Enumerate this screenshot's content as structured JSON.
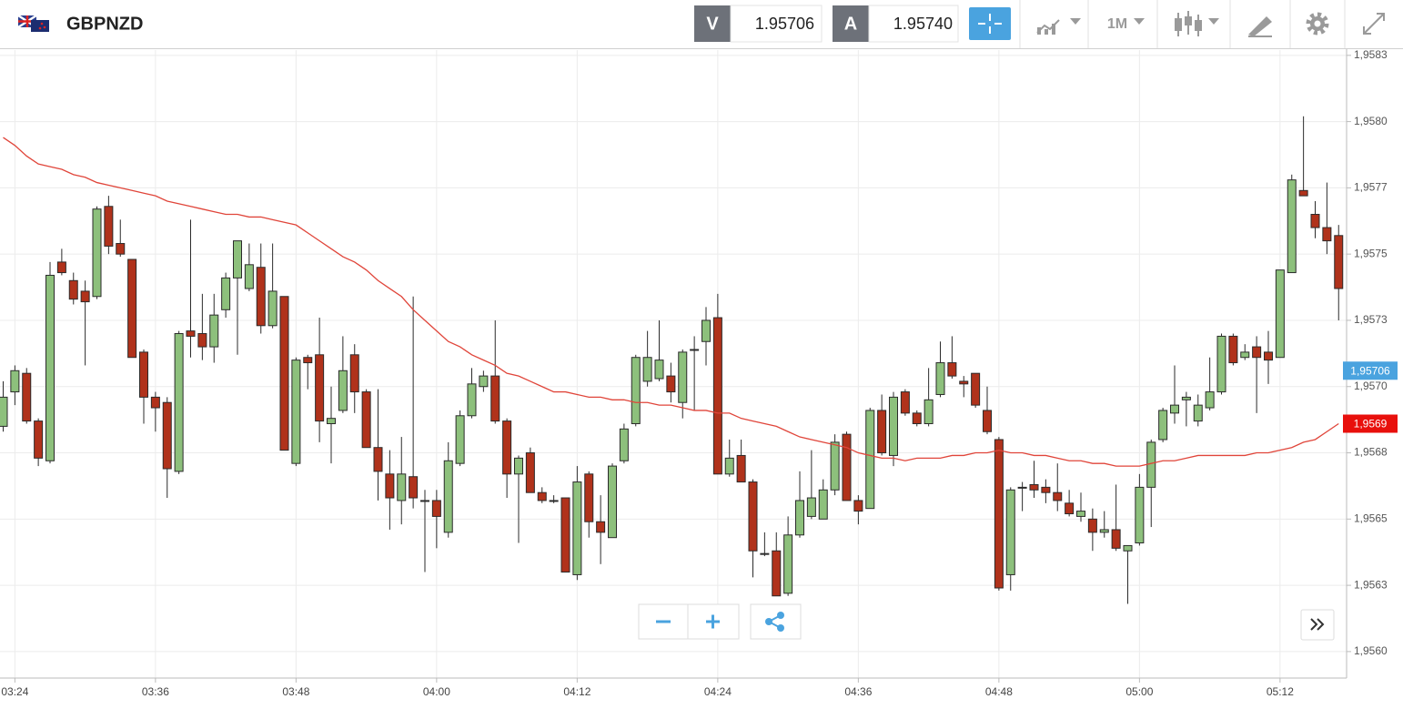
{
  "toolbar": {
    "symbol": "GBPNZD",
    "bid_label": "V",
    "bid": "1.95706",
    "ask_label": "A",
    "ask": "1.95740",
    "timeframe": "1M"
  },
  "chart_data": {
    "type": "candlestick",
    "categories": [
      null,
      "03:24",
      null,
      null,
      null,
      null,
      null,
      null,
      null,
      null,
      null,
      null,
      null,
      "03:36",
      null,
      null,
      null,
      null,
      null,
      null,
      null,
      null,
      null,
      null,
      null,
      "03:48",
      null,
      null,
      null,
      null,
      null,
      null,
      null,
      null,
      null,
      null,
      null,
      "04:00",
      null,
      null,
      null,
      null,
      null,
      null,
      null,
      null,
      null,
      null,
      null,
      "04:12",
      null,
      null,
      null,
      null,
      null,
      null,
      null,
      null,
      null,
      null,
      null,
      "04:24",
      null,
      null,
      null,
      null,
      null,
      null,
      null,
      null,
      null,
      null,
      null,
      "04:36",
      null,
      null,
      null,
      null,
      null,
      null,
      null,
      null,
      null,
      null,
      null,
      "04:48",
      null,
      null,
      null,
      null,
      null,
      null,
      null,
      null,
      null,
      null,
      null,
      "05:00",
      null,
      null,
      null,
      null,
      null,
      null,
      null,
      null,
      null,
      null,
      null,
      "05:12",
      null,
      null,
      null,
      null,
      null
    ],
    "open": [
      1.95685,
      1.95698,
      1.95705,
      1.95687,
      1.95672,
      1.95747,
      1.9574,
      1.95736,
      1.95734,
      1.95768,
      1.95754,
      1.95748,
      1.95713,
      1.95696,
      1.95694,
      1.95668,
      1.95721,
      1.9572,
      1.95715,
      1.95729,
      1.95741,
      1.95737,
      1.95745,
      1.95723,
      1.95734,
      1.95671,
      1.95711,
      1.95712,
      1.95686,
      1.95691,
      1.95712,
      1.95698,
      1.95677,
      1.95667,
      1.95657,
      1.95666,
      1.95657,
      1.95657,
      1.95645,
      1.95671,
      1.95689,
      1.957,
      1.95704,
      1.95687,
      1.95667,
      1.95675,
      1.9566,
      1.95657,
      1.95658,
      1.95629,
      1.95667,
      1.95649,
      1.95643,
      1.95672,
      1.95686,
      1.95702,
      1.95703,
      1.95704,
      1.95694,
      1.95714,
      1.95717,
      1.95726,
      1.95667,
      1.95674,
      1.95664,
      1.95637,
      1.95638,
      1.95622,
      1.95644,
      1.95651,
      1.9565,
      1.95661,
      1.95682,
      1.95657,
      1.95654,
      1.95691,
      1.95674,
      1.95698,
      1.9569,
      1.95686,
      1.95697,
      1.95709,
      1.95702,
      1.95705,
      1.95691,
      1.9568,
      1.95629,
      1.95662,
      1.95663,
      1.95662,
      1.9566,
      1.95656,
      1.95651,
      1.9565,
      1.95645,
      1.95646,
      1.95638,
      1.95641,
      1.95662,
      1.9568,
      1.9569,
      1.95695,
      1.95687,
      1.95692,
      1.95698,
      1.95719,
      1.95711,
      1.95715,
      1.95713,
      1.95711,
      1.95743,
      1.95774,
      1.95765,
      1.9576,
      1.95757
    ],
    "high": [
      1.95702,
      1.95708,
      1.95707,
      1.95688,
      1.95747,
      1.95752,
      1.95743,
      1.9574,
      1.95768,
      1.95772,
      1.95763,
      1.95748,
      1.95714,
      1.95698,
      1.95696,
      1.95721,
      1.95763,
      1.95735,
      1.95735,
      1.95743,
      1.95755,
      1.95754,
      1.95754,
      1.95754,
      1.95734,
      1.95711,
      1.95712,
      1.95726,
      1.957,
      1.95719,
      1.95716,
      1.95699,
      1.95699,
      1.95676,
      1.95681,
      1.95734,
      1.95661,
      1.95661,
      1.95679,
      1.95691,
      1.95707,
      1.95706,
      1.95725,
      1.95688,
      1.95674,
      1.95677,
      1.95662,
      1.95659,
      1.95658,
      1.9567,
      1.95668,
      1.95659,
      1.95671,
      1.95686,
      1.95712,
      1.95721,
      1.95725,
      1.95709,
      1.95714,
      1.95719,
      1.9573,
      1.95735,
      1.9568,
      1.9568,
      1.95665,
      1.95645,
      1.95645,
      1.95651,
      1.95668,
      1.95676,
      1.95665,
      1.95682,
      1.95683,
      1.95659,
      1.95692,
      1.95697,
      1.95698,
      1.95699,
      1.95691,
      1.95707,
      1.95717,
      1.95719,
      1.95704,
      1.95705,
      1.957,
      1.95681,
      1.95662,
      1.95664,
      1.95672,
      1.95665,
      1.95671,
      1.95661,
      1.9566,
      1.95654,
      1.95653,
      1.95663,
      1.9564,
      1.95667,
      1.9568,
      1.95692,
      1.95708,
      1.95698,
      1.95697,
      1.95711,
      1.9572,
      1.9572,
      1.95716,
      1.95719,
      1.95721,
      1.95744,
      1.9578,
      1.95802,
      1.9577,
      1.95777,
      1.95761
    ],
    "low": [
      1.95683,
      1.95693,
      1.95686,
      1.9567,
      1.95671,
      1.95742,
      1.95731,
      1.95708,
      1.95733,
      1.9575,
      1.95749,
      1.95711,
      1.95686,
      1.95683,
      1.95658,
      1.95667,
      1.95711,
      1.9571,
      1.95709,
      1.95726,
      1.95712,
      1.95736,
      1.9572,
      1.95722,
      1.95676,
      1.9567,
      1.95699,
      1.95679,
      1.95671,
      1.9569,
      1.9569,
      1.95677,
      1.95657,
      1.95646,
      1.95648,
      1.95654,
      1.9563,
      1.95639,
      1.95643,
      1.9567,
      1.95688,
      1.95698,
      1.95686,
      1.95658,
      1.95641,
      1.9566,
      1.95656,
      1.95656,
      1.9563,
      1.95627,
      1.95643,
      1.95633,
      1.95643,
      1.95671,
      1.95685,
      1.957,
      1.95702,
      1.95694,
      1.95688,
      1.95691,
      1.95708,
      1.95667,
      1.95666,
      1.95664,
      1.95628,
      1.95636,
      1.95621,
      1.95621,
      1.95643,
      1.9565,
      1.9565,
      1.95659,
      1.95657,
      1.95648,
      1.95654,
      1.95674,
      1.9567,
      1.95689,
      1.95685,
      1.95685,
      1.95696,
      1.95703,
      1.95696,
      1.95692,
      1.95682,
      1.95623,
      1.95623,
      1.95653,
      1.95658,
      1.95656,
      1.95653,
      1.95651,
      1.95649,
      1.95638,
      1.95643,
      1.95638,
      1.95618,
      1.9564,
      1.95647,
      1.95679,
      1.95686,
      1.95685,
      1.95685,
      1.95691,
      1.95697,
      1.95708,
      1.9571,
      1.9569,
      1.95701,
      1.95711,
      1.95743,
      1.95772,
      1.95756,
      1.9575,
      1.95725
    ],
    "close": [
      1.95696,
      1.95706,
      1.95687,
      1.95673,
      1.95742,
      1.95743,
      1.95733,
      1.95732,
      1.95767,
      1.95753,
      1.9575,
      1.95711,
      1.95696,
      1.95692,
      1.95669,
      1.9572,
      1.95719,
      1.95715,
      1.95727,
      1.95741,
      1.95755,
      1.95746,
      1.95723,
      1.95736,
      1.95676,
      1.9571,
      1.95709,
      1.95687,
      1.95688,
      1.95706,
      1.95698,
      1.95677,
      1.95668,
      1.95658,
      1.95667,
      1.95658,
      1.95657,
      1.95651,
      1.95672,
      1.95689,
      1.95701,
      1.95704,
      1.95687,
      1.95667,
      1.95673,
      1.9566,
      1.95657,
      1.95657,
      1.9563,
      1.95664,
      1.95649,
      1.95645,
      1.9567,
      1.95684,
      1.95711,
      1.95711,
      1.9571,
      1.95698,
      1.95713,
      1.95714,
      1.95725,
      1.95667,
      1.95673,
      1.95664,
      1.95638,
      1.95637,
      1.95621,
      1.95644,
      1.95657,
      1.95658,
      1.95661,
      1.95679,
      1.95657,
      1.95653,
      1.95691,
      1.95675,
      1.95696,
      1.9569,
      1.95686,
      1.95695,
      1.95709,
      1.95704,
      1.95701,
      1.95693,
      1.95683,
      1.95624,
      1.95661,
      1.95662,
      1.95661,
      1.9566,
      1.95657,
      1.95652,
      1.95653,
      1.95645,
      1.95646,
      1.95639,
      1.9564,
      1.95662,
      1.95679,
      1.95691,
      1.95693,
      1.95696,
      1.95693,
      1.95698,
      1.95719,
      1.95709,
      1.95713,
      1.95711,
      1.9571,
      1.95744,
      1.95778,
      1.95772,
      1.9576,
      1.95755,
      1.95737
    ],
    "up_color": "#8dc07c",
    "down_color": "#b0321b",
    "overlay": {
      "type": "line",
      "color": "#e0453a",
      "values": [
        1.95794,
        1.95791,
        1.95787,
        1.95784,
        1.95783,
        1.95782,
        1.9578,
        1.95779,
        1.95777,
        1.95776,
        1.95775,
        1.95774,
        1.95773,
        1.95772,
        1.9577,
        1.95769,
        1.95768,
        1.95767,
        1.95766,
        1.95765,
        1.95765,
        1.95764,
        1.95764,
        1.95763,
        1.95762,
        1.95761,
        1.95758,
        1.95755,
        1.95752,
        1.95749,
        1.95747,
        1.95744,
        1.9574,
        1.95737,
        1.95734,
        1.95729,
        1.95725,
        1.95721,
        1.95717,
        1.95715,
        1.95712,
        1.9571,
        1.95708,
        1.95705,
        1.95704,
        1.95702,
        1.957,
        1.95698,
        1.95698,
        1.95697,
        1.95696,
        1.95696,
        1.95695,
        1.95695,
        1.95694,
        1.95694,
        1.95693,
        1.95693,
        1.95692,
        1.95691,
        1.95691,
        1.9569,
        1.9569,
        1.95688,
        1.95687,
        1.95686,
        1.95685,
        1.95683,
        1.95681,
        1.9568,
        1.95679,
        1.95678,
        1.95677,
        1.95675,
        1.95674,
        1.95673,
        1.95673,
        1.95672,
        1.95673,
        1.95673,
        1.95673,
        1.95674,
        1.95674,
        1.95675,
        1.95675,
        1.95676,
        1.95675,
        1.95675,
        1.95674,
        1.95674,
        1.95673,
        1.95672,
        1.95672,
        1.95671,
        1.95671,
        1.9567,
        1.9567,
        1.9567,
        1.95671,
        1.95672,
        1.95672,
        1.95673,
        1.95674,
        1.95674,
        1.95674,
        1.95674,
        1.95674,
        1.95675,
        1.95675,
        1.95676,
        1.95677,
        1.95679,
        1.9568,
        1.95683,
        1.95686
      ]
    },
    "price_tags": [
      {
        "value": 1.95706,
        "label": "1,95706",
        "color": "#4aa3df"
      },
      {
        "value": 1.95686,
        "label": "1,9569",
        "color": "#e8100c"
      }
    ],
    "ylim": [
      1.9559,
      1.95827
    ],
    "yticks": [
      {
        "value": 1.95825,
        "label": "1,9583"
      },
      {
        "value": 1.958,
        "label": "1,9580"
      },
      {
        "value": 1.95775,
        "label": "1,9577"
      },
      {
        "value": 1.9575,
        "label": "1,9575"
      },
      {
        "value": 1.95725,
        "label": "1,9573"
      },
      {
        "value": 1.957,
        "label": "1,9570"
      },
      {
        "value": 1.95675,
        "label": "1,9568"
      },
      {
        "value": 1.9565,
        "label": "1,9565"
      },
      {
        "value": 1.95625,
        "label": "1,9563"
      },
      {
        "value": 1.956,
        "label": "1,9560"
      }
    ],
    "grid": true
  }
}
